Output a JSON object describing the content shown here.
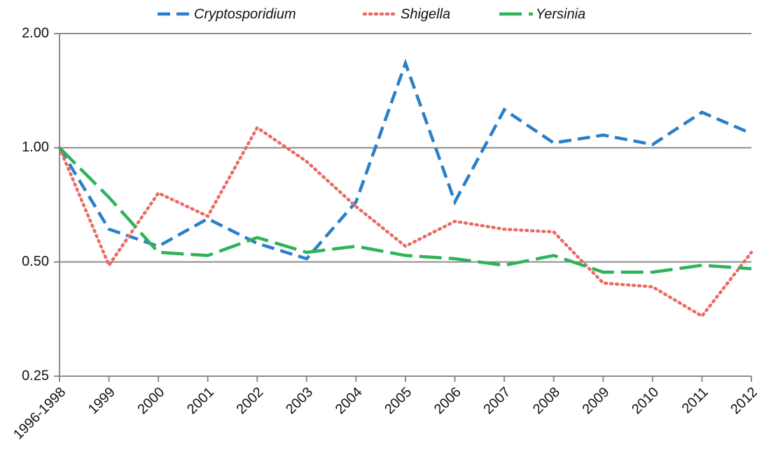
{
  "chart_data": {
    "type": "line",
    "categories": [
      "1996-1998",
      "1999",
      "2000",
      "2001",
      "2002",
      "2003",
      "2004",
      "2005",
      "2006",
      "2007",
      "2008",
      "2009",
      "2010",
      "2011",
      "2012"
    ],
    "series": [
      {
        "name": "Cryptosporidium",
        "color": "#2a80c8",
        "dash": "18,9",
        "values": [
          1.0,
          0.61,
          0.55,
          0.65,
          0.56,
          0.51,
          0.72,
          1.67,
          0.72,
          1.26,
          1.03,
          1.08,
          1.02,
          1.24,
          1.09
        ]
      },
      {
        "name": "Shigella",
        "color": "#ea6a64",
        "dash": "2,6",
        "values": [
          1.0,
          0.49,
          0.76,
          0.66,
          1.13,
          0.92,
          0.7,
          0.55,
          0.64,
          0.61,
          0.6,
          0.44,
          0.43,
          0.36,
          0.53
        ]
      },
      {
        "name": "Yersinia",
        "color": "#2eb35a",
        "dash": "32,10",
        "values": [
          1.0,
          0.74,
          0.53,
          0.52,
          0.58,
          0.53,
          0.55,
          0.52,
          0.51,
          0.49,
          0.52,
          0.47,
          0.47,
          0.49,
          0.48
        ]
      }
    ],
    "ylim": [
      0.25,
      2
    ],
    "log_scale": true,
    "grid": true,
    "yticks": [
      {
        "value": 0.25,
        "label": "0.25"
      },
      {
        "value": 0.5,
        "label": "0.50"
      },
      {
        "value": 1,
        "label": "1.00"
      },
      {
        "value": 2,
        "label": "2.00"
      }
    ]
  }
}
